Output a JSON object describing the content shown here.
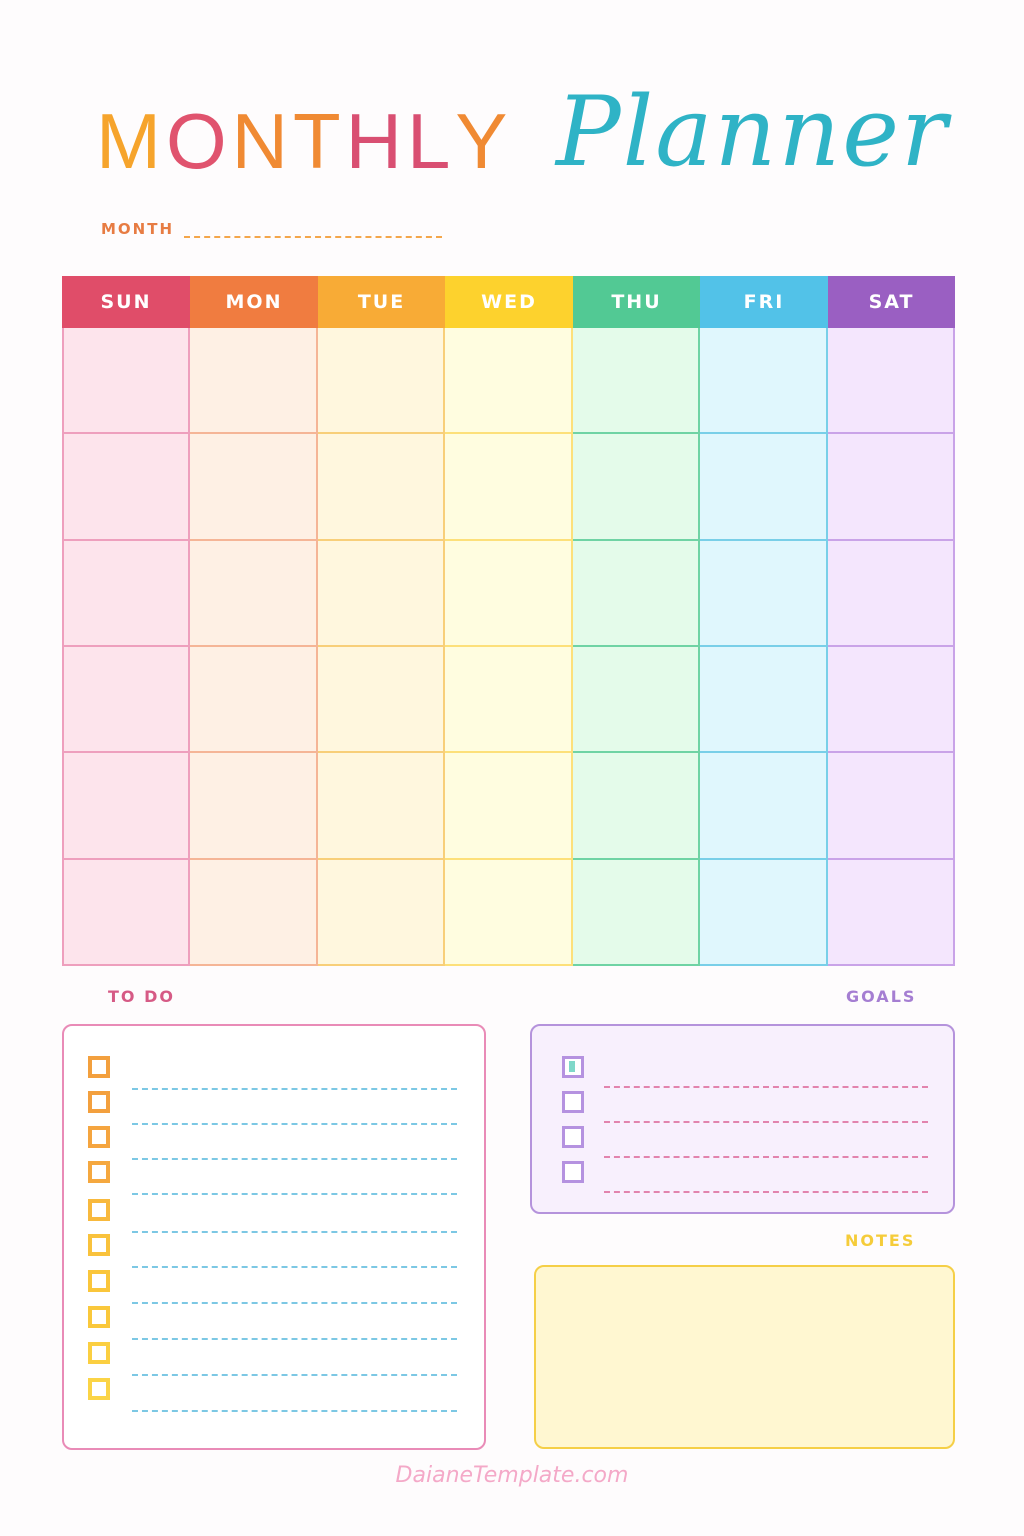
{
  "title": {
    "monthly_letters": [
      {
        "char": "M",
        "color": "#f6a42c"
      },
      {
        "char": "O",
        "color": "#e0536e"
      },
      {
        "char": "N",
        "color": "#f08a33"
      },
      {
        "char": "T",
        "color": "#f08a33"
      },
      {
        "char": "H",
        "color": "#d94f72"
      },
      {
        "char": "L",
        "color": "#d94f72"
      },
      {
        "char": "Y",
        "color": "#f08a33"
      }
    ],
    "monthly": "MONTHLY",
    "planner": "Planner"
  },
  "month_field": {
    "label": "MONTH",
    "value": ""
  },
  "calendar": {
    "rows": 6,
    "days": [
      {
        "label": "SUN",
        "header_color": "#e04d69",
        "cell_bg": "#fde4ec",
        "line_color": "#ee9fbd"
      },
      {
        "label": "MON",
        "header_color": "#f07c40",
        "cell_bg": "#fef0e4",
        "line_color": "#f5b596"
      },
      {
        "label": "TUE",
        "header_color": "#f8ab36",
        "cell_bg": "#fff7de",
        "line_color": "#f8cf79"
      },
      {
        "label": "WED",
        "header_color": "#fdd22d",
        "cell_bg": "#fffde0",
        "line_color": "#fde07a"
      },
      {
        "label": "THU",
        "header_color": "#52c994",
        "cell_bg": "#e4fbea",
        "line_color": "#6fd3a4"
      },
      {
        "label": "FRI",
        "header_color": "#52c2e8",
        "cell_bg": "#e0f7fd",
        "line_color": "#79cfe8"
      },
      {
        "label": "SAT",
        "header_color": "#9a5fc2",
        "cell_bg": "#f4e6fd",
        "line_color": "#c9a3e8"
      }
    ]
  },
  "todo": {
    "label": "TO DO",
    "items": [
      {
        "checked": false,
        "text": "",
        "box_color": "#f3a03e"
      },
      {
        "checked": false,
        "text": "",
        "box_color": "#f3a03e"
      },
      {
        "checked": false,
        "text": "",
        "box_color": "#f5a53f"
      },
      {
        "checked": false,
        "text": "",
        "box_color": "#f5a83f"
      },
      {
        "checked": false,
        "text": "",
        "box_color": "#f8b93d"
      },
      {
        "checked": false,
        "text": "",
        "box_color": "#f9c23c"
      },
      {
        "checked": false,
        "text": "",
        "box_color": "#fac63b"
      },
      {
        "checked": false,
        "text": "",
        "box_color": "#fac83b"
      },
      {
        "checked": false,
        "text": "",
        "box_color": "#fbcf41"
      },
      {
        "checked": false,
        "text": "",
        "box_color": "#fbd446"
      }
    ],
    "line_color": "#7cc8e4"
  },
  "goals": {
    "label": "GOALS",
    "items": [
      {
        "checked": true,
        "text": ""
      },
      {
        "checked": false,
        "text": ""
      },
      {
        "checked": false,
        "text": ""
      },
      {
        "checked": false,
        "text": ""
      }
    ],
    "box_color": "#b592e0",
    "line_color": "#e284ad"
  },
  "notes": {
    "label": "NOTES",
    "value": ""
  },
  "footer": {
    "watermark": "DaianeTemplate.com"
  }
}
